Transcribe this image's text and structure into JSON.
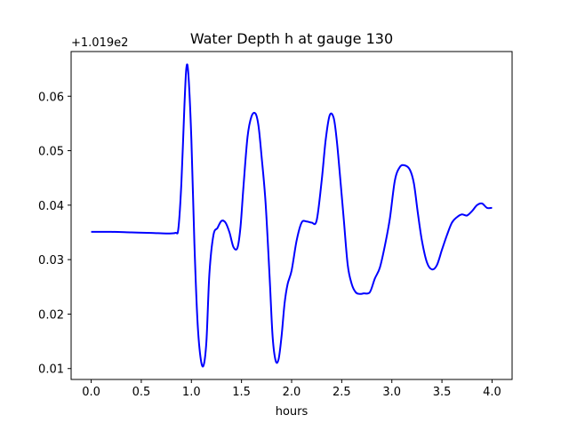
{
  "chart_data": {
    "type": "line",
    "title": "Water Depth h at gauge 130",
    "xlabel": "hours",
    "ylabel": "",
    "y_offset_label": "+1.019e2",
    "xlim": [
      -0.2,
      4.2
    ],
    "ylim": [
      0.008,
      0.0682
    ],
    "x_ticks": [
      0.0,
      0.5,
      1.0,
      1.5,
      2.0,
      2.5,
      3.0,
      3.5,
      4.0
    ],
    "x_tick_labels": [
      "0.0",
      "0.5",
      "1.0",
      "1.5",
      "2.0",
      "2.5",
      "3.0",
      "3.5",
      "4.0"
    ],
    "y_ticks": [
      0.01,
      0.02,
      0.03,
      0.04,
      0.05,
      0.06
    ],
    "y_tick_labels": [
      "0.01",
      "0.02",
      "0.03",
      "0.04",
      "0.05",
      "0.06"
    ],
    "grid": false,
    "series": [
      {
        "color": "#0000ff",
        "x": [
          0.0,
          0.2,
          0.4,
          0.6,
          0.75,
          0.84,
          0.87,
          0.9,
          0.93,
          0.95,
          0.97,
          1.0,
          1.03,
          1.06,
          1.09,
          1.12,
          1.15,
          1.18,
          1.22,
          1.26,
          1.3,
          1.34,
          1.38,
          1.42,
          1.46,
          1.49,
          1.52,
          1.56,
          1.6,
          1.64,
          1.67,
          1.7,
          1.74,
          1.78,
          1.81,
          1.84,
          1.87,
          1.9,
          1.93,
          1.96,
          2.0,
          2.05,
          2.1,
          2.15,
          2.2,
          2.25,
          2.3,
          2.34,
          2.38,
          2.42,
          2.45,
          2.48,
          2.52,
          2.56,
          2.6,
          2.64,
          2.68,
          2.72,
          2.78,
          2.83,
          2.88,
          2.93,
          2.98,
          3.03,
          3.08,
          3.13,
          3.18,
          3.22,
          3.26,
          3.3,
          3.35,
          3.4,
          3.45,
          3.5,
          3.55,
          3.6,
          3.65,
          3.7,
          3.75,
          3.8,
          3.85,
          3.9,
          3.95,
          4.0
        ],
        "y": [
          0.0351,
          0.0351,
          0.035,
          0.0349,
          0.0348,
          0.0349,
          0.0357,
          0.044,
          0.058,
          0.0652,
          0.064,
          0.052,
          0.033,
          0.019,
          0.0122,
          0.0105,
          0.015,
          0.0275,
          0.0345,
          0.0358,
          0.0371,
          0.0368,
          0.035,
          0.0323,
          0.0322,
          0.036,
          0.0435,
          0.0525,
          0.0563,
          0.0568,
          0.0545,
          0.049,
          0.0405,
          0.027,
          0.016,
          0.0115,
          0.0117,
          0.016,
          0.022,
          0.0255,
          0.028,
          0.0335,
          0.0368,
          0.037,
          0.0368,
          0.0372,
          0.0445,
          0.052,
          0.0565,
          0.056,
          0.052,
          0.046,
          0.0375,
          0.029,
          0.0255,
          0.024,
          0.0237,
          0.0238,
          0.024,
          0.0265,
          0.0285,
          0.0325,
          0.0375,
          0.0445,
          0.047,
          0.0473,
          0.0465,
          0.044,
          0.0385,
          0.0335,
          0.0295,
          0.0282,
          0.029,
          0.0318,
          0.0345,
          0.0368,
          0.0378,
          0.0383,
          0.0381,
          0.0389,
          0.04,
          0.0403,
          0.0395,
          0.0395
        ]
      }
    ]
  }
}
